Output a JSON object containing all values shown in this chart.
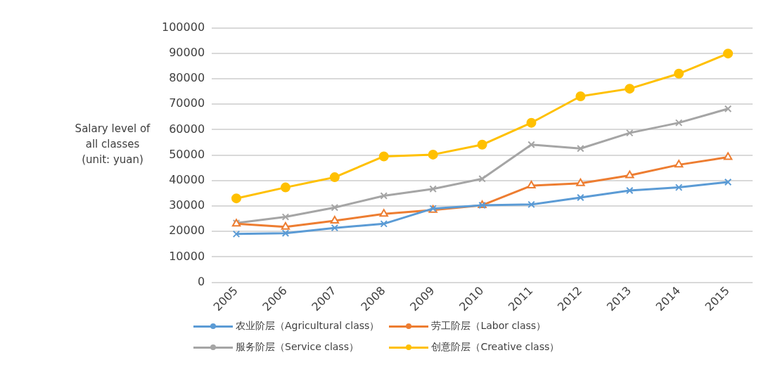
{
  "chart_data": {
    "type": "line",
    "ylabel": "Salary level of all classes (unit: yuan)",
    "categories": [
      "2005",
      "2006",
      "2007",
      "2008",
      "2009",
      "2010",
      "2011",
      "2012",
      "2013",
      "2014",
      "2015"
    ],
    "ylim": [
      0,
      100000
    ],
    "yticks": [
      0,
      10000,
      20000,
      30000,
      40000,
      50000,
      60000,
      70000,
      80000,
      90000,
      100000
    ],
    "grid": "y",
    "legend": "bottom",
    "series": [
      {
        "name": "农业阶层（Agricultural class）",
        "color": "#5b9bd5",
        "marker": "cross",
        "values": [
          19000,
          19300,
          21400,
          23000,
          29000,
          30300,
          30600,
          33300,
          36100,
          37300,
          39400
        ]
      },
      {
        "name": "劳工阶层（Labor class）",
        "color": "#ed7d31",
        "marker": "triangle",
        "values": [
          23000,
          21800,
          24200,
          26900,
          28400,
          30300,
          38000,
          38900,
          42000,
          46200,
          49200
        ]
      },
      {
        "name": "服务阶层（Service class）",
        "color": "#a5a5a5",
        "marker": "cross",
        "values": [
          23300,
          25700,
          29400,
          34000,
          36700,
          40700,
          54100,
          52600,
          58700,
          62700,
          68200
        ]
      },
      {
        "name": "创意阶层（Creative class）",
        "color": "#ffc000",
        "marker": "circle",
        "values": [
          33000,
          37300,
          41300,
          49500,
          50200,
          54100,
          62700,
          73100,
          76100,
          82000,
          89900
        ]
      }
    ]
  }
}
